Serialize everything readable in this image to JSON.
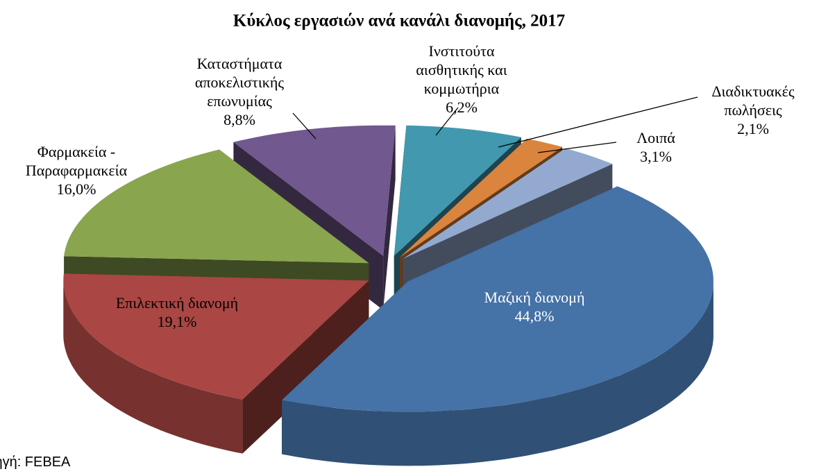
{
  "chart_data": {
    "type": "pie3d",
    "title": "Κύκλος εργασιών ανά κανάλι διανομής, 2017",
    "source": "Πηγή: FEBEA",
    "categories": [
      "Ινστιτούτα αισθητικής και κομμωτήρια",
      "Διαδικτυακές πωλήσεις",
      "Λοιπά",
      "Μαζική διανομή",
      "Επιλεκτική διανομή",
      "Φαρμακεία - Παραφαρμακεία",
      "Καταστήματα αποκελιστικής επωνυμίας"
    ],
    "values": [
      6.2,
      2.1,
      3.1,
      44.8,
      19.1,
      16.0,
      8.8
    ],
    "value_labels": [
      "6,2%",
      "2,1%",
      "3,1%",
      "44,8%",
      "19,1%",
      "16,0%",
      "8,8%"
    ],
    "colors": [
      "#4198af",
      "#db843d",
      "#93a9cf",
      "#4572a7",
      "#aa4643",
      "#89a54e",
      "#71588f"
    ]
  }
}
